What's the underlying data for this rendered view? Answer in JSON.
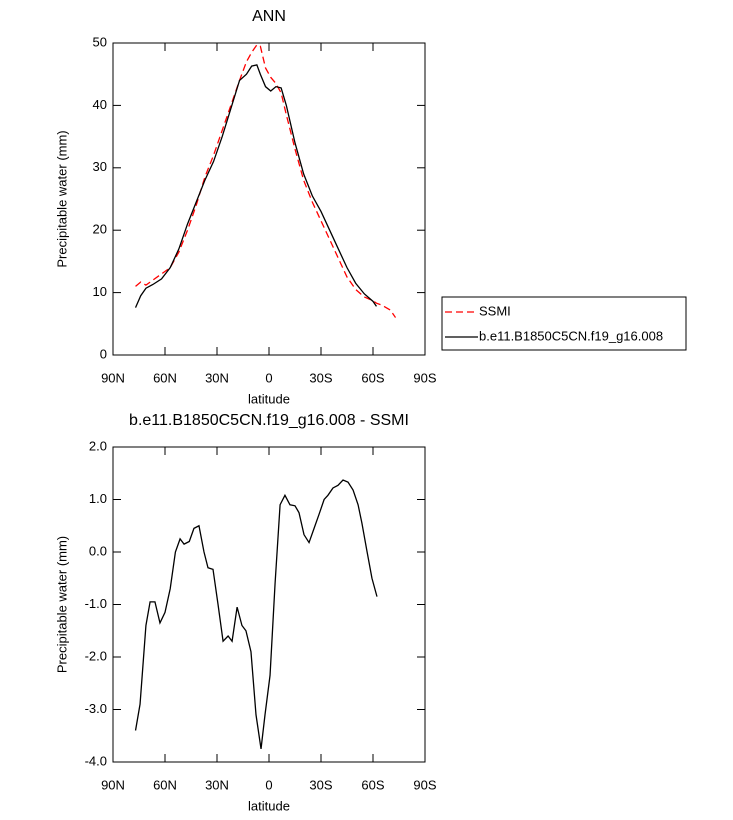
{
  "chart_data": [
    {
      "type": "line",
      "title": "ANN",
      "x_label": "latitude",
      "y_label": "Precipitable water (mm)",
      "x": [
        77,
        74,
        71,
        67,
        62,
        57,
        52,
        47,
        42,
        37,
        32,
        27,
        22,
        17,
        13,
        10,
        7,
        5,
        2,
        -1,
        -4,
        -7,
        -10,
        -15,
        -20,
        -25,
        -30,
        -35,
        -40,
        -45,
        -50,
        -55,
        -60,
        -62,
        -65,
        -70,
        -73
      ],
      "series": [
        {
          "name": "SSMI",
          "color": "#ff0000",
          "dashed": true,
          "values": [
            11,
            11.7,
            11.2,
            12,
            13,
            14,
            16.5,
            20,
            24,
            28.5,
            32,
            36,
            40,
            44,
            47,
            48.5,
            49.7,
            49.5,
            46,
            44.5,
            43.5,
            42,
            38.5,
            33,
            28,
            24.5,
            21.5,
            18.5,
            15.5,
            12.5,
            10.5,
            9.3,
            8.7,
            8.3,
            8,
            7.2,
            6
          ]
        },
        {
          "name": "b.e11.B1850C5CN.f19_g16.008",
          "color": "#000000",
          "dashed": false,
          "values": [
            7.6,
            9.5,
            10.7,
            11.3,
            12.2,
            14,
            17,
            21,
            24.5,
            28,
            31,
            35,
            39.5,
            44,
            45,
            46.3,
            46.5,
            45,
            43,
            42.3,
            43,
            42.8,
            40,
            34,
            29,
            25.5,
            23,
            20,
            17,
            14,
            11.5,
            9.8,
            8.6,
            7.8,
            null,
            null,
            null
          ]
        }
      ],
      "xlim": [
        90,
        -90
      ],
      "xticks": [
        {
          "value": 90,
          "label": "90N"
        },
        {
          "value": 60,
          "label": "60N"
        },
        {
          "value": 30,
          "label": "30N"
        },
        0,
        {
          "value": -30,
          "label": "30S"
        },
        {
          "value": -60,
          "label": "60S"
        },
        {
          "value": -90,
          "label": "90S"
        }
      ],
      "ylim": [
        0,
        50
      ],
      "yticks": [
        0,
        10,
        20,
        30,
        40,
        50
      ],
      "grid": false,
      "legend": "right"
    },
    {
      "type": "line",
      "title": "b.e11.B1850C5CN.f19_g16.008 - SSMI",
      "x_label": "latitude",
      "y_label": "Precipitable water (mm)",
      "x": [
        77,
        74.4,
        71,
        68.6,
        65.8,
        62.9,
        60,
        57,
        54,
        51.3,
        49,
        46,
        43.3,
        40.4,
        37.5,
        35.2,
        32.3,
        29.4,
        26.5,
        23.6,
        21.3,
        18.4,
        15.6,
        13.3,
        10.4,
        7.5,
        4.6,
        2.3,
        -0.6,
        -3.5,
        -6.4,
        -9.2,
        -12.1,
        -15,
        -17.3,
        -20.2,
        -23.1,
        -26,
        -28.9,
        -31.8,
        -34,
        -36.9,
        -39.8,
        -42.7,
        -45.6,
        -48.5,
        -51.4,
        -53.6,
        -56.6,
        -59.4,
        -62.3
      ],
      "series": [
        {
          "name": null,
          "color": "#000000",
          "dashed": false,
          "values": [
            -3.4,
            -2.9,
            -1.4,
            -0.95,
            -0.95,
            -1.35,
            -1.15,
            -0.7,
            0,
            0.25,
            0.15,
            0.2,
            0.45,
            0.5,
            0,
            -0.3,
            -0.33,
            -1,
            -1.7,
            -1.6,
            -1.7,
            -1.05,
            -1.4,
            -1.5,
            -1.9,
            -3.1,
            -3.75,
            -3.1,
            -2.35,
            -0.6,
            0.9,
            1.08,
            0.9,
            0.88,
            0.75,
            0.33,
            0.18,
            0.45,
            0.72,
            1,
            1.08,
            1.22,
            1.27,
            1.37,
            1.33,
            1.18,
            0.9,
            0.55,
            0,
            -0.5,
            -0.85
          ]
        }
      ],
      "xlim": [
        90,
        -90
      ],
      "xticks": [
        {
          "value": 90,
          "label": "90N"
        },
        {
          "value": 60,
          "label": "60N"
        },
        {
          "value": 30,
          "label": "30N"
        },
        0,
        {
          "value": -30,
          "label": "30S"
        },
        {
          "value": -60,
          "label": "60S"
        },
        {
          "value": -90,
          "label": "90S"
        }
      ],
      "ylim": [
        -4,
        2
      ],
      "yticks": [
        {
          "value": 2,
          "label": "2.0"
        },
        {
          "value": 1,
          "label": "1.0"
        },
        {
          "value": 0,
          "label": "0.0"
        },
        {
          "value": -1,
          "label": "-1.0"
        },
        {
          "value": -2,
          "label": "-2.0"
        },
        {
          "value": -3,
          "label": "-3.0"
        },
        {
          "value": -4,
          "label": "-4.0"
        }
      ],
      "grid": false
    }
  ]
}
